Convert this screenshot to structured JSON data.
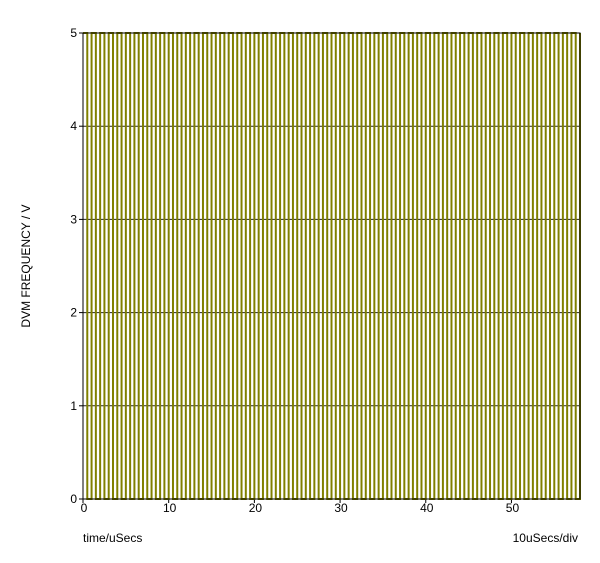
{
  "chart_data": {
    "type": "line",
    "step": "post",
    "y_label": "DVM FREQUENCY / V",
    "x_label": "time/uSecs",
    "scale_label": "10uSecs/div",
    "x": [
      0,
      0.5,
      1,
      1.5,
      2,
      2.5,
      3,
      3.5,
      4,
      4.5,
      5,
      5.5,
      6,
      6.5,
      7,
      7.5,
      8,
      8.5,
      9,
      9.5,
      10,
      10.5,
      11,
      11.5,
      12,
      12.5,
      13,
      13.5,
      14,
      14.5,
      15,
      15.5,
      16,
      16.5,
      17,
      17.5,
      18,
      18.5,
      19,
      19.5,
      20,
      20.5,
      21,
      21.5,
      22,
      22.5,
      23,
      23.5,
      24,
      24.5,
      25,
      25.5,
      26,
      26.5,
      27,
      27.5,
      28,
      28.5,
      29,
      29.5,
      30,
      30.5,
      31,
      31.5,
      32,
      32.5,
      33,
      33.5,
      34,
      34.5,
      35,
      35.5,
      36,
      36.5,
      37,
      37.5,
      38,
      38.5,
      39,
      39.5,
      40,
      40.5,
      41,
      41.5,
      42,
      42.5,
      43,
      43.5,
      44,
      44.5,
      45,
      45.5,
      46,
      46.5,
      47,
      47.5,
      48,
      48.5,
      49,
      49.5,
      50,
      50.5,
      51,
      51.5,
      52,
      52.5,
      53,
      53.5,
      54,
      54.5,
      55,
      55.5,
      56,
      56.5,
      57,
      57.5,
      58
    ],
    "series": [
      {
        "color": "#808000",
        "values": [
          5,
          0,
          5,
          0,
          5,
          0,
          5,
          0,
          5,
          0,
          5,
          0,
          5,
          0,
          5,
          0,
          5,
          0,
          5,
          0,
          5,
          0,
          5,
          0,
          5,
          0,
          5,
          0,
          5,
          0,
          5,
          0,
          5,
          0,
          5,
          0,
          5,
          0,
          5,
          0,
          5,
          0,
          5,
          0,
          5,
          0,
          5,
          0,
          5,
          0,
          5,
          0,
          5,
          0,
          5,
          0,
          5,
          0,
          5,
          0,
          5,
          0,
          5,
          0,
          5,
          0,
          5,
          0,
          5,
          0,
          5,
          0,
          5,
          0,
          5,
          0,
          5,
          0,
          5,
          0,
          5,
          0,
          5,
          0,
          5,
          0,
          5,
          0,
          5,
          0,
          5,
          0,
          5,
          0,
          5,
          0,
          5,
          0,
          5,
          0,
          5,
          0,
          5,
          0,
          5,
          0,
          5,
          0,
          5,
          0,
          5,
          0,
          5,
          0,
          5,
          0,
          5
        ]
      }
    ],
    "xlim": [
      0,
      58
    ],
    "xticks": [
      0,
      10,
      20,
      30,
      40,
      50
    ],
    "ylim": [
      0,
      5
    ],
    "yticks": [
      0,
      1,
      2,
      3,
      4,
      5
    ],
    "grid": true
  }
}
